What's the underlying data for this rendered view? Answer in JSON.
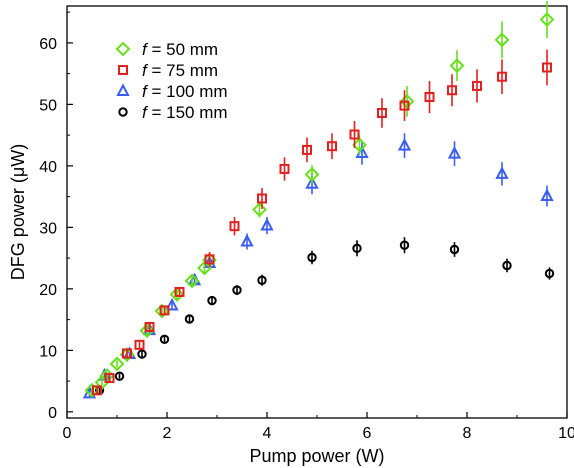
{
  "chart_data": {
    "type": "scatter",
    "title": "",
    "xlabel": "Pump power (W)",
    "ylabel": "DFG power (μW)",
    "xlim": [
      0,
      10
    ],
    "ylim": [
      -1,
      66
    ],
    "xticks": [
      0,
      2,
      4,
      6,
      8,
      10
    ],
    "yticks": [
      0,
      10,
      20,
      30,
      40,
      50,
      60
    ],
    "grid": false,
    "legend_position": "top-left",
    "series": [
      {
        "legend_var": "f",
        "legend_rest": " = 50 mm",
        "marker": "diamond",
        "color": "#66e01a",
        "x": [
          0.5,
          0.7,
          0.8,
          1.0,
          1.2,
          1.6,
          1.9,
          2.2,
          2.5,
          2.75,
          2.85,
          3.85,
          4.9,
          5.85,
          6.8,
          7.8,
          8.7,
          9.6
        ],
        "y": [
          3.5,
          4.8,
          5.9,
          7.8,
          9.3,
          13.2,
          16.4,
          19.1,
          21.3,
          23.4,
          24.7,
          32.9,
          38.6,
          43.4,
          50.5,
          56.3,
          60.5,
          63.8
        ],
        "err": [
          0.5,
          0.5,
          0.5,
          0.6,
          0.6,
          0.8,
          0.8,
          0.8,
          0.8,
          0.9,
          0.9,
          1.3,
          1.5,
          1.7,
          2.5,
          2.5,
          3.0,
          3.0
        ]
      },
      {
        "legend_var": "f",
        "legend_rest": " = 75 mm",
        "marker": "square",
        "color": "#e2201e",
        "x": [
          0.6,
          0.85,
          1.2,
          1.45,
          1.65,
          1.95,
          2.25,
          2.85,
          3.35,
          3.9,
          4.35,
          4.8,
          5.3,
          5.75,
          6.3,
          6.75,
          7.25,
          7.7,
          8.2,
          8.7,
          9.6
        ],
        "y": [
          3.5,
          5.5,
          9.5,
          10.9,
          13.8,
          16.5,
          19.5,
          24.8,
          30.2,
          34.7,
          39.5,
          42.6,
          43.2,
          45.1,
          48.6,
          49.8,
          51.2,
          52.3,
          53.0,
          54.5,
          56.0
        ],
        "err": [
          0.5,
          0.6,
          0.6,
          0.7,
          0.7,
          0.8,
          0.8,
          1.2,
          1.5,
          1.7,
          1.9,
          2.0,
          2.1,
          2.2,
          2.4,
          2.5,
          2.6,
          2.6,
          2.7,
          2.8,
          2.9
        ]
      },
      {
        "legend_var": "f",
        "legend_rest": " = 100 mm",
        "marker": "triangle",
        "color": "#3a5ef0",
        "x": [
          0.45,
          0.75,
          1.25,
          1.65,
          2.1,
          2.55,
          2.85,
          3.6,
          4.0,
          4.9,
          5.9,
          6.75,
          7.75,
          8.7,
          9.6
        ],
        "y": [
          3.0,
          5.9,
          9.4,
          13.3,
          17.3,
          21.4,
          24.2,
          27.7,
          30.3,
          37.1,
          42.1,
          43.3,
          42.0,
          38.7,
          35.1
        ],
        "err": [
          0.5,
          0.5,
          0.6,
          0.7,
          0.8,
          0.9,
          1.0,
          1.3,
          1.4,
          1.7,
          1.9,
          2.0,
          2.0,
          1.9,
          1.7
        ]
      },
      {
        "legend_var": "f",
        "legend_rest": " = 150 mm",
        "marker": "circle",
        "color": "#000000",
        "x": [
          0.65,
          1.05,
          1.5,
          1.95,
          2.45,
          2.9,
          3.4,
          3.9,
          4.9,
          5.8,
          6.75,
          7.75,
          8.8,
          9.65
        ],
        "y": [
          3.5,
          5.8,
          9.4,
          11.8,
          15.1,
          18.1,
          19.8,
          21.4,
          25.1,
          26.6,
          27.1,
          26.4,
          23.8,
          22.5
        ],
        "err": [
          0.4,
          0.4,
          0.5,
          0.5,
          0.6,
          0.7,
          0.8,
          0.9,
          1.1,
          1.3,
          1.3,
          1.2,
          1.1,
          1.0
        ]
      }
    ]
  }
}
